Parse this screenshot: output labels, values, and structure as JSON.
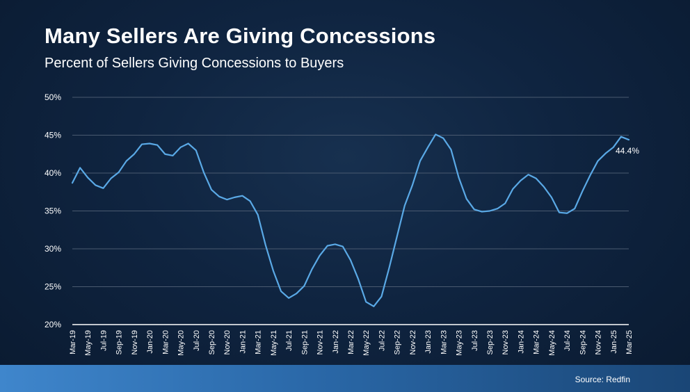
{
  "header": {
    "title": "Many Sellers Are Giving Concessions",
    "subtitle": "Percent of Sellers Giving Concessions to Buyers"
  },
  "footer": {
    "source": "Source: Redfin"
  },
  "colors": {
    "line": "#5aa9e6",
    "grid": "#4a5a70",
    "axis": "#ffffff",
    "text": "#ffffff"
  },
  "chart_data": {
    "type": "line",
    "title": "Many Sellers Are Giving Concessions",
    "subtitle": "Percent of Sellers Giving Concessions to Buyers",
    "ylim": [
      20,
      50
    ],
    "y_ticks": [
      20,
      25,
      30,
      35,
      40,
      45,
      50
    ],
    "y_tick_labels": [
      "20%",
      "25%",
      "30%",
      "35%",
      "40%",
      "45%",
      "50%"
    ],
    "grid": true,
    "x": [
      "Mar-19",
      "Apr-19",
      "May-19",
      "Jun-19",
      "Jul-19",
      "Aug-19",
      "Sep-19",
      "Oct-19",
      "Nov-19",
      "Dec-19",
      "Jan-20",
      "Feb-20",
      "Mar-20",
      "Apr-20",
      "May-20",
      "Jun-20",
      "Jul-20",
      "Aug-20",
      "Sep-20",
      "Oct-20",
      "Nov-20",
      "Dec-20",
      "Jan-21",
      "Feb-21",
      "Mar-21",
      "Apr-21",
      "May-21",
      "Jun-21",
      "Jul-21",
      "Aug-21",
      "Sep-21",
      "Oct-21",
      "Nov-21",
      "Dec-21",
      "Jan-22",
      "Feb-22",
      "Mar-22",
      "Apr-22",
      "May-22",
      "Jun-22",
      "Jul-22",
      "Aug-22",
      "Sep-22",
      "Oct-22",
      "Nov-22",
      "Dec-22",
      "Jan-23",
      "Feb-23",
      "Mar-23",
      "Apr-23",
      "May-23",
      "Jun-23",
      "Jul-23",
      "Aug-23",
      "Sep-23",
      "Oct-23",
      "Nov-23",
      "Dec-23",
      "Jan-24",
      "Feb-24",
      "Mar-24",
      "Apr-24",
      "May-24",
      "Jun-24",
      "Jul-24",
      "Aug-24",
      "Sep-24",
      "Oct-24",
      "Nov-24",
      "Dec-24",
      "Jan-25",
      "Feb-25",
      "Mar-25"
    ],
    "x_tick_labels": [
      "Mar-19",
      "May-19",
      "Jul-19",
      "Sep-19",
      "Nov-19",
      "Jan-20",
      "Mar-20",
      "May-20",
      "Jul-20",
      "Sep-20",
      "Nov-20",
      "Jan-21",
      "Mar-21",
      "May-21",
      "Jul-21",
      "Sep-21",
      "Nov-21",
      "Jan-22",
      "Mar-22",
      "May-22",
      "Jul-22",
      "Sep-22",
      "Nov-22",
      "Jan-23",
      "Mar-23",
      "May-23",
      "Jul-23",
      "Sep-23",
      "Nov-23",
      "Jan-24",
      "Mar-24",
      "May-24",
      "Jul-24",
      "Sep-24",
      "Nov-24",
      "Jan-25",
      "Mar-25"
    ],
    "series": [
      {
        "values": [
          38.7,
          40.7,
          39.4,
          38.4,
          38.0,
          39.3,
          40.1,
          41.6,
          42.5,
          43.8,
          43.9,
          43.7,
          42.5,
          42.3,
          43.4,
          43.9,
          43.0,
          40.1,
          37.8,
          36.9,
          36.5,
          36.8,
          37.0,
          36.3,
          34.5,
          30.5,
          27.1,
          24.4,
          23.5,
          24.1,
          25.1,
          27.3,
          29.1,
          30.4,
          30.6,
          30.3,
          28.5,
          26.0,
          23.0,
          22.4,
          23.7,
          27.5,
          31.6,
          35.7,
          38.4,
          41.6,
          43.4,
          45.1,
          44.6,
          43.1,
          39.4,
          36.6,
          35.2,
          34.9,
          35.0,
          35.3,
          36.0,
          37.9,
          39.0,
          39.8,
          39.3,
          38.2,
          36.8,
          34.8,
          34.7,
          35.3,
          37.6,
          39.7,
          41.6,
          42.6,
          43.4,
          44.8,
          44.4
        ]
      }
    ],
    "annotations": [
      {
        "x": "Mar-25",
        "text": "44.4%"
      }
    ]
  }
}
